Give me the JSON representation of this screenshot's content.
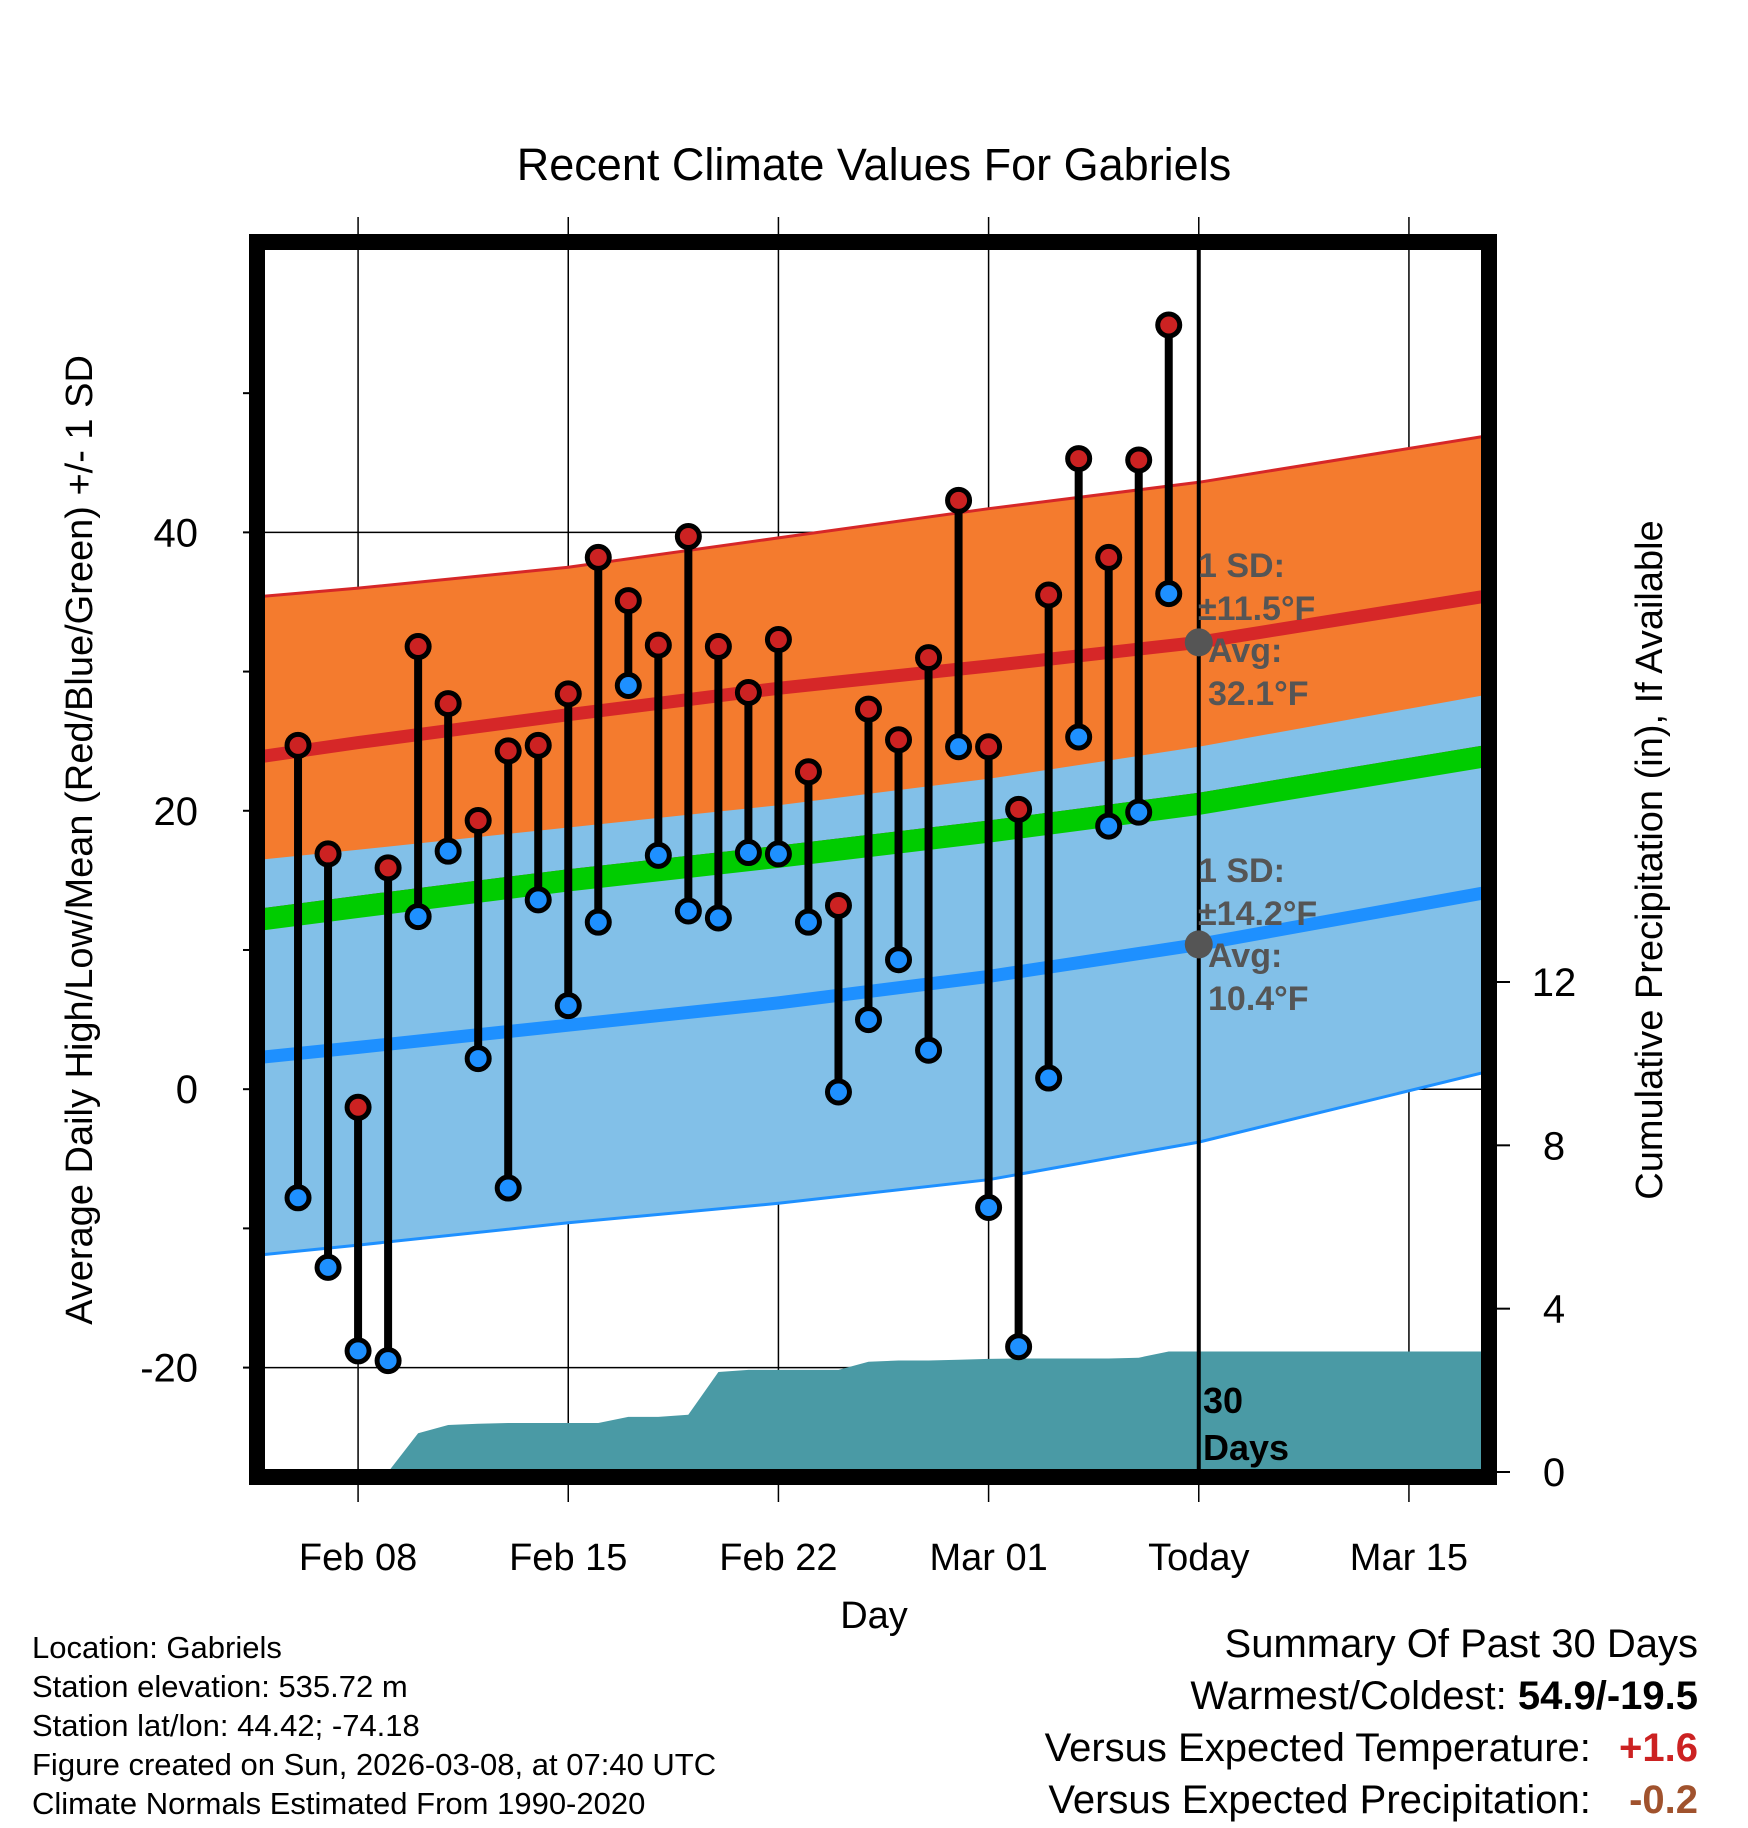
{
  "chart_data": {
    "type": "range-line",
    "title": "Recent Climate Values For Gabriels",
    "xlabel": "Day",
    "ylabel": "Average Daily High/Low/Mean (Red/Blue/Green) +/- 1 SD",
    "y2label": "Cumulative Precipitation (in), If Available",
    "xlim": [
      -3.2,
      37.5
    ],
    "ylim": [
      -27.5,
      60.5
    ],
    "y2lim": [
      0,
      30
    ],
    "xticks": [
      {
        "day": 0,
        "label": "Feb 08"
      },
      {
        "day": 7,
        "label": "Feb 15"
      },
      {
        "day": 14,
        "label": "Feb 22"
      },
      {
        "day": 21,
        "label": "Mar 01"
      },
      {
        "day": 28,
        "label": "Today"
      },
      {
        "day": 35,
        "label": "Mar 15"
      }
    ],
    "yticks": [
      -20,
      0,
      20,
      40
    ],
    "y2ticks": [
      0,
      4,
      8,
      12
    ],
    "daily": {
      "days": [
        -2,
        -1,
        0,
        1,
        2,
        3,
        4,
        5,
        6,
        7,
        8,
        9,
        10,
        11,
        12,
        13,
        14,
        15,
        16,
        17,
        18,
        19,
        20,
        21,
        22,
        23,
        24,
        25,
        26,
        27
      ],
      "highs": [
        24.7,
        16.9,
        -1.3,
        15.9,
        31.8,
        27.7,
        19.3,
        24.3,
        24.7,
        28.4,
        38.2,
        35.1,
        31.9,
        39.7,
        31.8,
        28.5,
        32.3,
        22.8,
        13.2,
        27.3,
        25.1,
        31.0,
        42.3,
        24.6,
        20.1,
        35.5,
        45.3,
        38.2,
        45.2,
        54.9
      ],
      "lows": [
        -7.8,
        -12.8,
        -18.8,
        -19.5,
        12.4,
        17.1,
        2.2,
        -7.1,
        13.6,
        6.0,
        12.0,
        29.0,
        16.8,
        12.8,
        12.3,
        17.0,
        16.9,
        12.0,
        -0.2,
        5.0,
        9.3,
        2.8,
        24.6,
        -8.5,
        -18.5,
        0.8,
        25.3,
        18.9,
        19.9,
        35.6
      ]
    },
    "normals": {
      "days": [
        -3.2,
        0,
        7,
        14,
        21,
        28,
        37.5
      ],
      "high_mean": [
        23.9,
        24.9,
        26.9,
        28.8,
        30.4,
        32.1,
        35.4
      ],
      "high_upper": [
        35.4,
        36.0,
        37.5,
        39.6,
        41.7,
        43.6,
        46.9
      ],
      "low_mean": [
        2.3,
        3.0,
        4.6,
        6.2,
        8.1,
        10.4,
        14.1
      ],
      "low_lower": [
        -11.9,
        -11.2,
        -9.6,
        -8.2,
        -6.5,
        -3.8,
        1.2
      ],
      "mean": [
        13.0,
        13.9,
        15.8,
        17.5,
        19.3,
        21.3,
        24.7
      ],
      "high_lower": [
        12.4,
        13.4,
        15.4,
        17.2,
        18.7,
        20.6,
        23.9
      ]
    },
    "precip": {
      "days": [
        -2.2,
        -1.2,
        -0.2,
        1,
        2,
        3,
        4,
        5,
        6,
        7,
        8,
        9,
        10,
        11,
        12,
        13,
        14,
        15,
        16,
        17,
        18,
        19,
        20,
        21,
        22,
        23,
        24,
        25,
        26,
        27,
        37.5
      ],
      "cumulative": [
        0,
        0,
        0,
        0,
        0.95,
        1.15,
        1.18,
        1.2,
        1.2,
        1.2,
        1.2,
        1.35,
        1.35,
        1.4,
        2.45,
        2.5,
        2.5,
        2.5,
        2.5,
        2.7,
        2.73,
        2.73,
        2.75,
        2.77,
        2.78,
        2.78,
        2.78,
        2.78,
        2.8,
        2.95,
        2.95
      ]
    },
    "annotations": {
      "high_sd": "1 SD:",
      "high_sd_value": "±11.5°F",
      "high_avg_label": "Avg:",
      "high_avg_value": "32.1°F",
      "high_avg": 32.1,
      "low_sd": "1 SD:",
      "low_sd_value": "±14.2°F",
      "low_avg_label": "Avg:",
      "low_avg_value": "10.4°F",
      "low_avg": 10.4,
      "days_line1": "30",
      "days_line2": "Days"
    },
    "colors": {
      "high_band": "#f47b2e",
      "high_line": "#d62728",
      "low_band": "#82c0e8",
      "low_line": "#1e90ff",
      "mean_band": "#00cc00",
      "overlap": "#8b1010",
      "precip": "#4a9aa5",
      "high_dot": "#cc2222",
      "low_dot": "#1e90ff",
      "marker": "#555555"
    }
  },
  "info": {
    "location": "Location: Gabriels",
    "elevation": "Station elevation: 535.72 m",
    "latlon": "Station lat/lon: 44.42; -74.18",
    "created": "Figure created on Sun, 2026-03-08, at 07:40 UTC",
    "normals": "Climate Normals Estimated From 1990-2020"
  },
  "summary": {
    "heading": "Summary Of Past 30 Days",
    "warmest_label": "Warmest/Coldest:",
    "warmest_value": "54.9/-19.5",
    "temp_label": "Versus Expected Temperature:",
    "temp_value": "+1.6",
    "precip_label": "Versus Expected Precipitation:",
    "precip_value": "-0.2"
  }
}
